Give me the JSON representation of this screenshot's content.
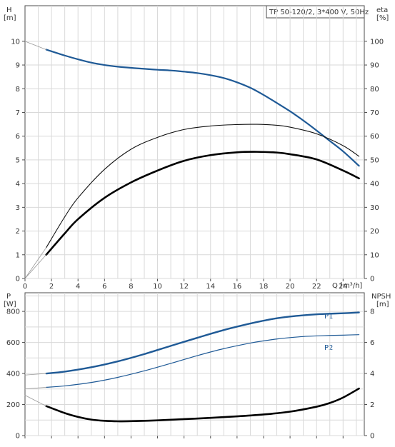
{
  "chart_data": [
    {
      "type": "line",
      "title": "TP 50-120/2, 3*400 V, 50Hz",
      "ylabel_left": "H",
      "ylabel_left_unit": "[m]",
      "ylabel_right": "eta",
      "ylabel_right_unit": "[%]",
      "xlabel": "Q [m³/h]",
      "xlim": [
        0,
        25.6
      ],
      "ylim_left": [
        0,
        11.5
      ],
      "ylim_right": [
        0,
        115
      ],
      "x_ticks": [
        "0",
        "2",
        "4",
        "6",
        "8",
        "10",
        "12",
        "14",
        "16",
        "18",
        "20",
        "22",
        "24"
      ],
      "y_left_ticks": [
        "0",
        "1",
        "2",
        "3",
        "4",
        "5",
        "6",
        "7",
        "8",
        "9",
        "10"
      ],
      "y_right_ticks": [
        "0",
        "10",
        "20",
        "30",
        "40",
        "50",
        "60",
        "70",
        "80",
        "90",
        "100"
      ],
      "grid": true,
      "series": [
        {
          "axis": "left",
          "color": "#1f5a96",
          "style": "head",
          "x": [
            1.6,
            3,
            4,
            5,
            6,
            7,
            8,
            9,
            10,
            11,
            12,
            13,
            14,
            15,
            16,
            17,
            18,
            19,
            20,
            21,
            22,
            23,
            24,
            25.2
          ],
          "y": [
            9.65,
            9.4,
            9.24,
            9.1,
            9.0,
            8.93,
            8.88,
            8.84,
            8.8,
            8.77,
            8.72,
            8.66,
            8.57,
            8.45,
            8.27,
            8.04,
            7.74,
            7.4,
            7.05,
            6.66,
            6.24,
            5.8,
            5.36,
            4.75
          ]
        },
        {
          "axis": "right",
          "color": "#111111",
          "style": "eta-thin",
          "x": [
            1.6,
            3,
            4,
            6,
            8,
            10,
            12,
            14,
            16,
            17.5,
            19,
            20,
            22,
            24,
            25.2
          ],
          "y": [
            13,
            26,
            34,
            46,
            54.5,
            59.5,
            62.8,
            64.3,
            64.9,
            65.0,
            64.6,
            63.8,
            61.0,
            56.0,
            51.5
          ]
        },
        {
          "axis": "right",
          "color": "#000000",
          "style": "eta-thick",
          "x": [
            1.6,
            3,
            4,
            6,
            8,
            10,
            12,
            14,
            16,
            17.5,
            19,
            20,
            22,
            24,
            25.2
          ],
          "y": [
            10,
            19,
            25,
            34,
            40.5,
            45.5,
            49.6,
            52,
            53.2,
            53.4,
            53.1,
            52.4,
            50.2,
            45.5,
            42.2
          ]
        },
        {
          "axis": "left",
          "color": "#999999",
          "style": "origin-guide",
          "x": [
            0,
            1.6
          ],
          "y": [
            10.0,
            9.65
          ]
        },
        {
          "axis": "right",
          "color": "#999999",
          "style": "origin-guide",
          "x": [
            0,
            1.6
          ],
          "y": [
            0,
            13
          ]
        },
        {
          "axis": "right",
          "color": "#999999",
          "style": "origin-guide",
          "x": [
            0,
            1.6
          ],
          "y": [
            0,
            10
          ]
        }
      ]
    },
    {
      "type": "line",
      "ylabel_left": "P",
      "ylabel_left_unit": "[W]",
      "ylabel_right": "NPSH",
      "ylabel_right_unit": "[m]",
      "xlim": [
        0,
        25.6
      ],
      "ylim_left": [
        0,
        920
      ],
      "ylim_right": [
        0,
        9.2
      ],
      "y_left_ticks": [
        "0",
        "200",
        "400",
        "600",
        "800"
      ],
      "y_right_ticks": [
        "0",
        "2",
        "4",
        "6",
        "8"
      ],
      "grid": true,
      "series": [
        {
          "name": "P1",
          "axis": "left",
          "color": "#1f5a96",
          "style": "p1",
          "x": [
            1.6,
            3,
            5,
            7,
            9,
            11,
            13,
            15,
            17,
            18,
            19,
            20,
            21,
            22,
            23,
            24,
            25.2
          ],
          "y": [
            400,
            412,
            440,
            478,
            525,
            578,
            630,
            680,
            722,
            740,
            756,
            767,
            775,
            781,
            785,
            788,
            793
          ]
        },
        {
          "name": "P2",
          "axis": "left",
          "color": "#1f5a96",
          "style": "p2",
          "x": [
            1.6,
            3,
            5,
            7,
            9,
            11,
            13,
            15,
            17,
            18,
            19,
            20,
            21,
            22,
            23,
            24,
            25.2
          ],
          "y": [
            311,
            320,
            342,
            375,
            417,
            465,
            515,
            560,
            596,
            610,
            622,
            631,
            638,
            642,
            645,
            647,
            650
          ]
        },
        {
          "axis": "right",
          "color": "#000000",
          "style": "npsh",
          "x": [
            1.6,
            3,
            4,
            5,
            6,
            7,
            8,
            10,
            12,
            14,
            16,
            18,
            20,
            22,
            23,
            24,
            25.2
          ],
          "y": [
            1.9,
            1.45,
            1.2,
            1.03,
            0.95,
            0.92,
            0.93,
            0.98,
            1.06,
            1.14,
            1.24,
            1.36,
            1.54,
            1.86,
            2.1,
            2.45,
            3.03
          ]
        },
        {
          "axis": "left",
          "color": "#999999",
          "style": "origin-guide",
          "x": [
            0,
            1.6
          ],
          "y": [
            390,
            400
          ]
        },
        {
          "axis": "left",
          "color": "#999999",
          "style": "origin-guide",
          "x": [
            0,
            1.6
          ],
          "y": [
            300,
            311
          ]
        },
        {
          "axis": "right",
          "color": "#999999",
          "style": "origin-guide",
          "x": [
            0,
            1.6
          ],
          "y": [
            2.6,
            1.9
          ]
        }
      ]
    }
  ]
}
